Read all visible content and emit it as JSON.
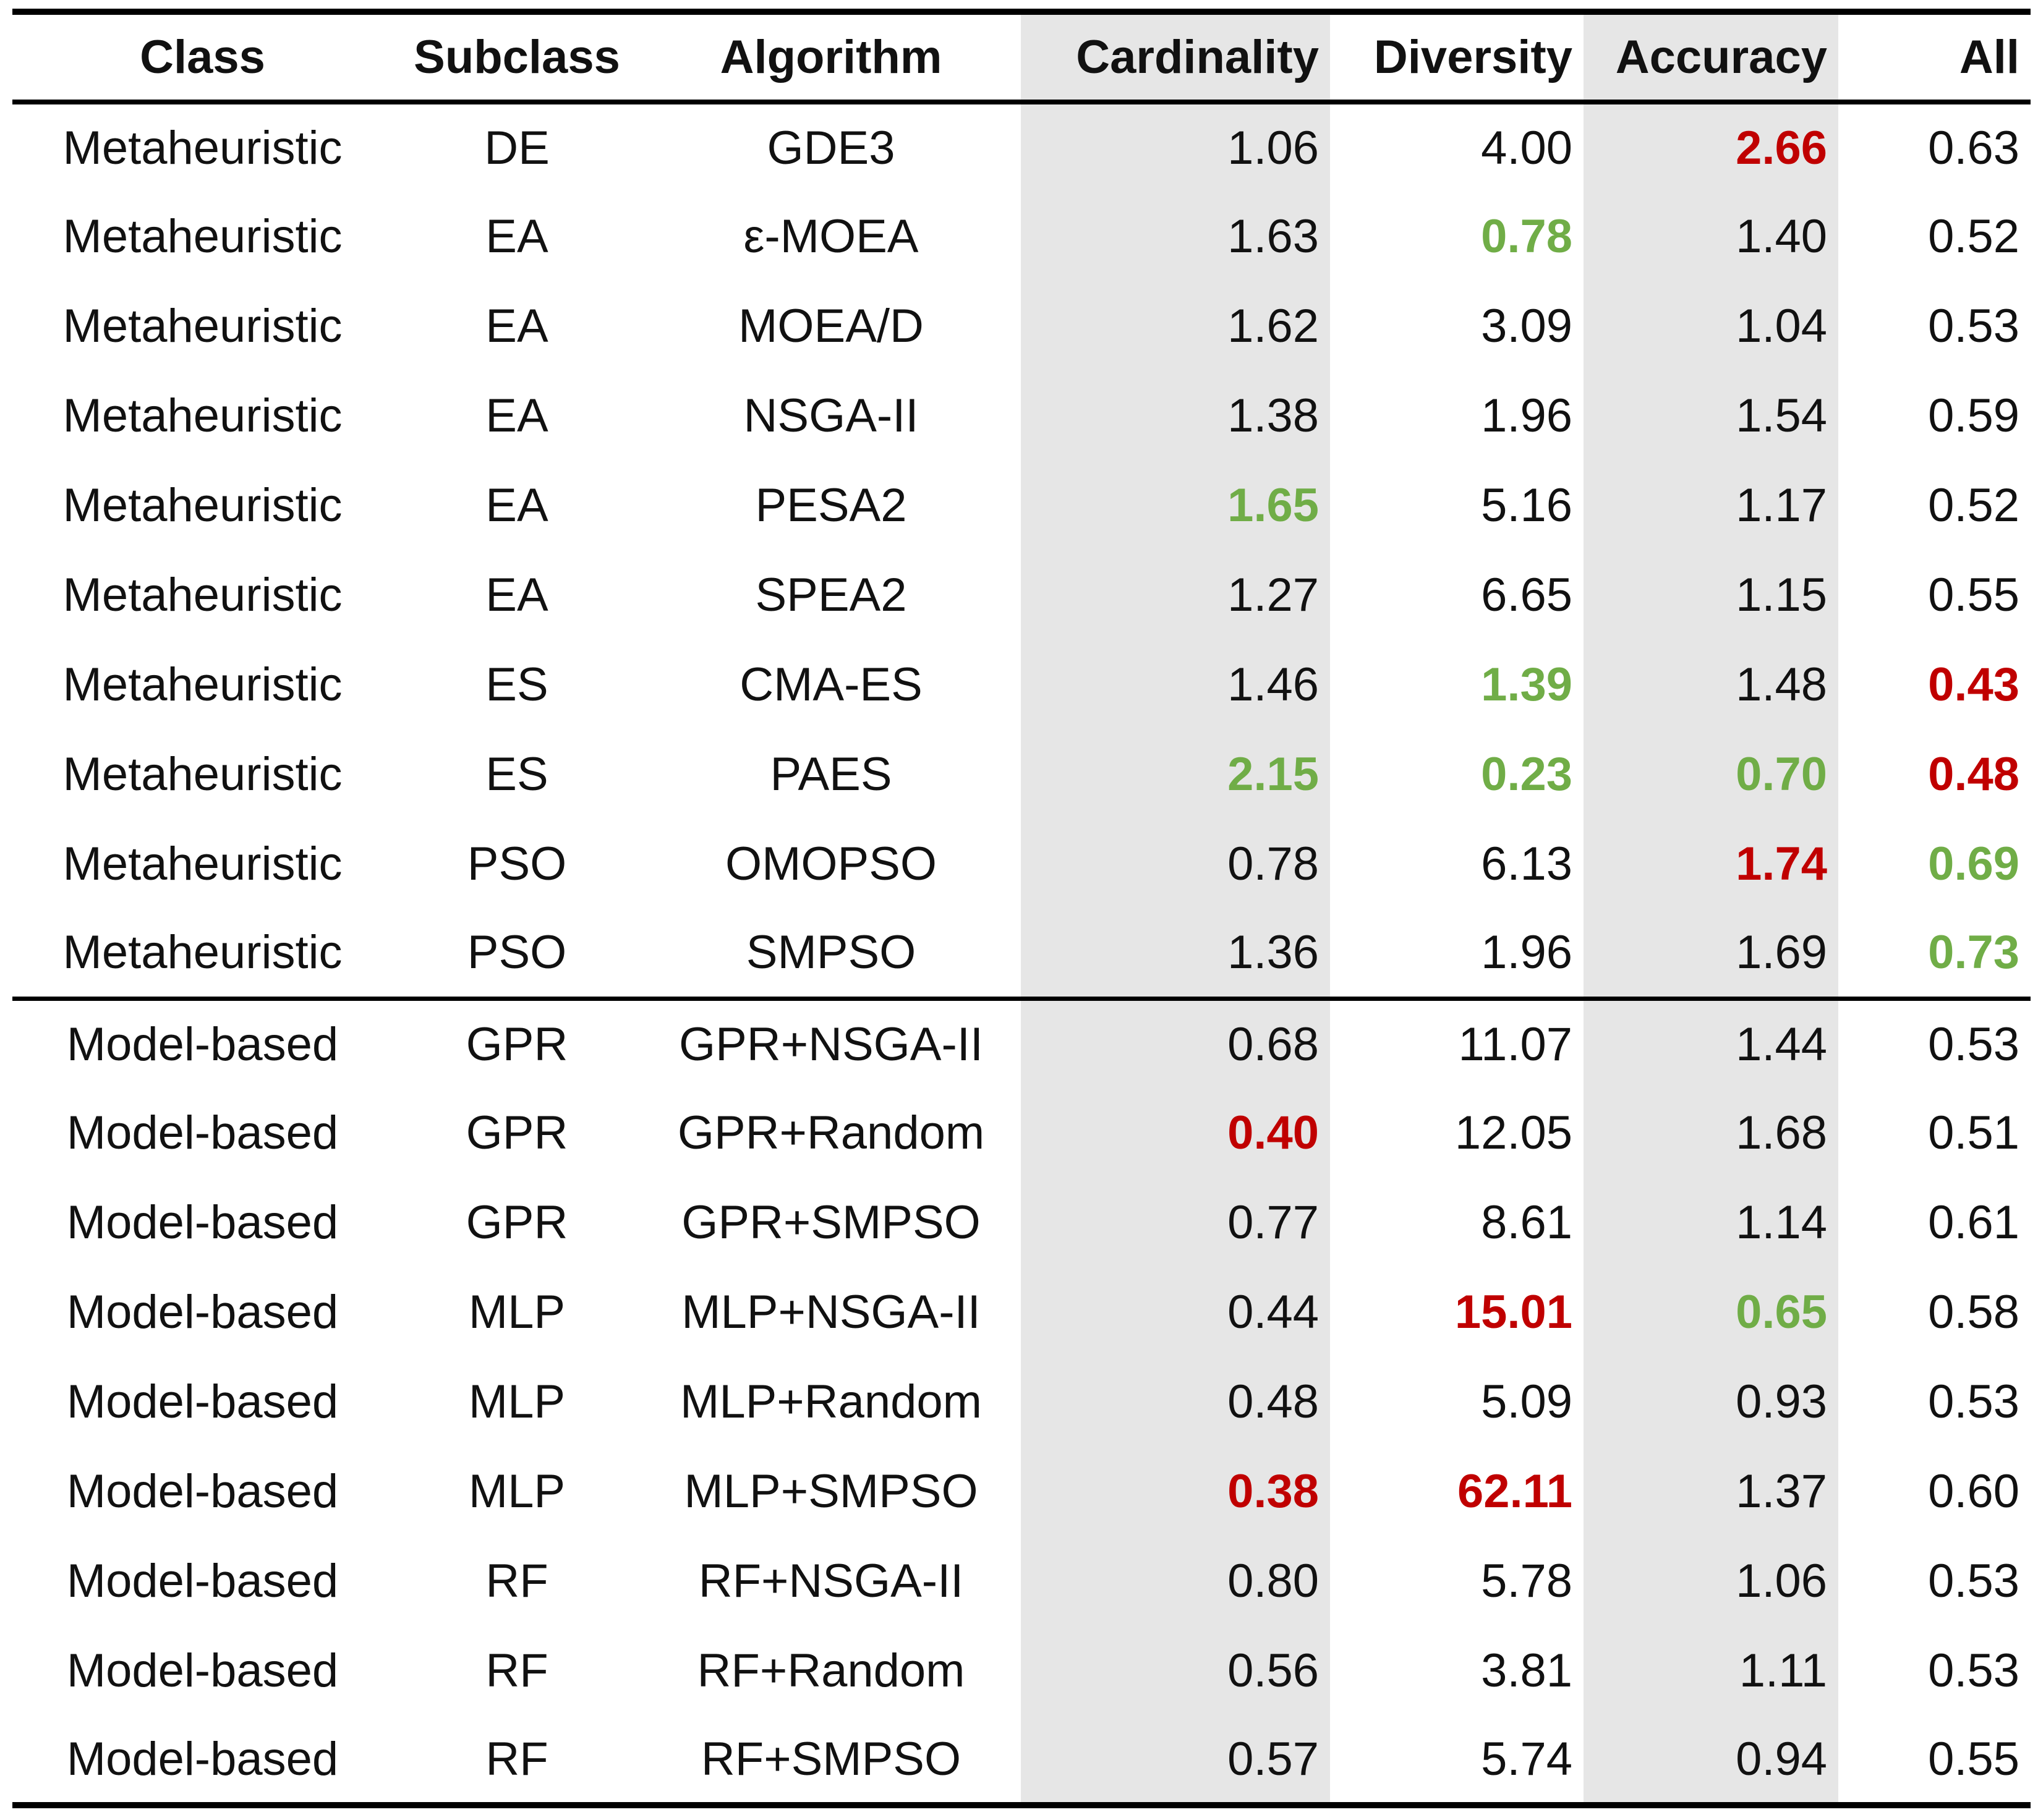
{
  "headers": {
    "class": "Class",
    "subclass": "Subclass",
    "algorithm": "Algorithm",
    "cardinality": "Cardinality",
    "diversity": "Diversity",
    "accuracy": "Accuracy",
    "all": "All"
  },
  "colors": {
    "red_highlight": "#c00000",
    "green_highlight": "#70ad47",
    "shaded_column": "#e6e6e6"
  },
  "rows": [
    {
      "class": "Metaheuristic",
      "subclass": "DE",
      "algorithm": "GDE3",
      "cardinality": "1.06",
      "diversity": "4.00",
      "accuracy": "2.66",
      "all": "0.63"
    },
    {
      "class": "Metaheuristic",
      "subclass": "EA",
      "algorithm": "ε-MOEA",
      "cardinality": "1.63",
      "diversity": "0.78",
      "accuracy": "1.40",
      "all": "0.52"
    },
    {
      "class": "Metaheuristic",
      "subclass": "EA",
      "algorithm": "MOEA/D",
      "cardinality": "1.62",
      "diversity": "3.09",
      "accuracy": "1.04",
      "all": "0.53"
    },
    {
      "class": "Metaheuristic",
      "subclass": "EA",
      "algorithm": "NSGA-II",
      "cardinality": "1.38",
      "diversity": "1.96",
      "accuracy": "1.54",
      "all": "0.59"
    },
    {
      "class": "Metaheuristic",
      "subclass": "EA",
      "algorithm": "PESA2",
      "cardinality": "1.65",
      "diversity": "5.16",
      "accuracy": "1.17",
      "all": "0.52"
    },
    {
      "class": "Metaheuristic",
      "subclass": "EA",
      "algorithm": "SPEA2",
      "cardinality": "1.27",
      "diversity": "6.65",
      "accuracy": "1.15",
      "all": "0.55"
    },
    {
      "class": "Metaheuristic",
      "subclass": "ES",
      "algorithm": "CMA-ES",
      "cardinality": "1.46",
      "diversity": "1.39",
      "accuracy": "1.48",
      "all": "0.43"
    },
    {
      "class": "Metaheuristic",
      "subclass": "ES",
      "algorithm": "PAES",
      "cardinality": "2.15",
      "diversity": "0.23",
      "accuracy": "0.70",
      "all": "0.48"
    },
    {
      "class": "Metaheuristic",
      "subclass": "PSO",
      "algorithm": "OMOPSO",
      "cardinality": "0.78",
      "diversity": "6.13",
      "accuracy": "1.74",
      "all": "0.69"
    },
    {
      "class": "Metaheuristic",
      "subclass": "PSO",
      "algorithm": "SMPSO",
      "cardinality": "1.36",
      "diversity": "1.96",
      "accuracy": "1.69",
      "all": "0.73"
    },
    {
      "class": "Model-based",
      "subclass": "GPR",
      "algorithm": "GPR+NSGA-II",
      "cardinality": "0.68",
      "diversity": "11.07",
      "accuracy": "1.44",
      "all": "0.53"
    },
    {
      "class": "Model-based",
      "subclass": "GPR",
      "algorithm": "GPR+Random",
      "cardinality": "0.40",
      "diversity": "12.05",
      "accuracy": "1.68",
      "all": "0.51"
    },
    {
      "class": "Model-based",
      "subclass": "GPR",
      "algorithm": "GPR+SMPSO",
      "cardinality": "0.77",
      "diversity": "8.61",
      "accuracy": "1.14",
      "all": "0.61"
    },
    {
      "class": "Model-based",
      "subclass": "MLP",
      "algorithm": "MLP+NSGA-II",
      "cardinality": "0.44",
      "diversity": "15.01",
      "accuracy": "0.65",
      "all": "0.58"
    },
    {
      "class": "Model-based",
      "subclass": "MLP",
      "algorithm": "MLP+Random",
      "cardinality": "0.48",
      "diversity": "5.09",
      "accuracy": "0.93",
      "all": "0.53"
    },
    {
      "class": "Model-based",
      "subclass": "MLP",
      "algorithm": "MLP+SMPSO",
      "cardinality": "0.38",
      "diversity": "62.11",
      "accuracy": "1.37",
      "all": "0.60"
    },
    {
      "class": "Model-based",
      "subclass": "RF",
      "algorithm": "RF+NSGA-II",
      "cardinality": "0.80",
      "diversity": "5.78",
      "accuracy": "1.06",
      "all": "0.53"
    },
    {
      "class": "Model-based",
      "subclass": "RF",
      "algorithm": "RF+Random",
      "cardinality": "0.56",
      "diversity": "3.81",
      "accuracy": "1.11",
      "all": "0.53"
    },
    {
      "class": "Model-based",
      "subclass": "RF",
      "algorithm": "RF+SMPSO",
      "cardinality": "0.57",
      "diversity": "5.74",
      "accuracy": "0.94",
      "all": "0.55"
    }
  ]
}
